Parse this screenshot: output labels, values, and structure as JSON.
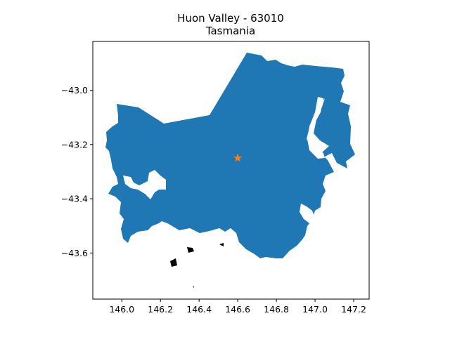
{
  "map": {
    "title_line1": "Huon Valley - 63010",
    "title_line2": "Tasmania",
    "fill_color": "#1f77b4",
    "marker_color": "#ff7f0e",
    "marker_icon": "star-icon",
    "marker_point": {
      "lon": 146.6,
      "lat": -43.25
    },
    "x_range": [
      145.85,
      147.28
    ],
    "y_range": [
      -43.77,
      -42.82
    ],
    "x_ticks": [
      146.0,
      146.2,
      146.4,
      146.6,
      146.8,
      147.0,
      147.2
    ],
    "x_tick_labels": [
      "146.0",
      "146.2",
      "146.4",
      "146.6",
      "146.8",
      "147.0",
      "147.2"
    ],
    "y_ticks": [
      -43.0,
      -43.2,
      -43.4,
      -43.6
    ],
    "y_tick_labels": [
      "−43.0",
      "−43.2",
      "−43.4",
      "−43.6"
    ]
  }
}
